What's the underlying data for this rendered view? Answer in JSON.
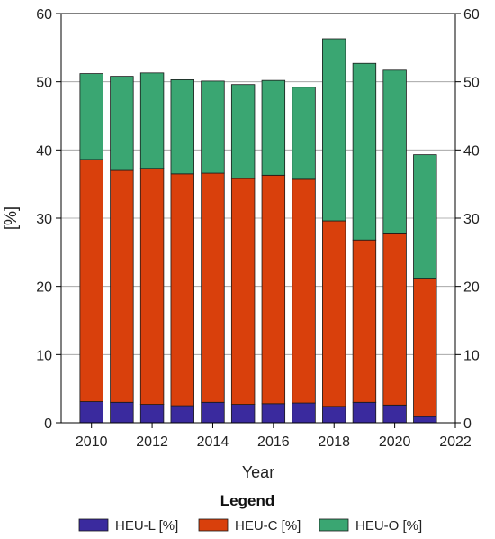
{
  "chart_data": {
    "type": "bar",
    "stacked": true,
    "x": [
      2010,
      2011,
      2012,
      2013,
      2014,
      2015,
      2016,
      2017,
      2018,
      2019,
      2020,
      2021
    ],
    "series": [
      {
        "name": "HEU-L  [%]",
        "color": "#3a2a9e",
        "values": [
          3.1,
          3.0,
          2.7,
          2.5,
          3.0,
          2.7,
          2.8,
          2.9,
          2.4,
          3.0,
          2.6,
          0.9
        ]
      },
      {
        "name": "HEU-C [%]",
        "color": "#d9400c",
        "values": [
          35.5,
          34.0,
          34.6,
          34.0,
          33.6,
          33.1,
          33.5,
          32.8,
          27.2,
          23.8,
          25.1,
          20.3
        ]
      },
      {
        "name": "HEU-O [%]",
        "color": "#3aa672",
        "values": [
          12.6,
          13.8,
          14.0,
          13.8,
          13.5,
          13.8,
          13.9,
          13.5,
          26.7,
          25.9,
          24.0,
          18.1
        ]
      }
    ],
    "xlabel": "Year",
    "ylabel": "[%]",
    "ylim": [
      0,
      60
    ],
    "yticks": [
      0,
      10,
      20,
      30,
      40,
      50,
      60
    ],
    "xlim": [
      2009,
      2022
    ],
    "xticks": [
      2010,
      2012,
      2014,
      2016,
      2018,
      2020,
      2022
    ],
    "grid": "horizontal",
    "right_axis_mirror": true,
    "legend": {
      "title": "Legend",
      "placement": "bottom"
    }
  }
}
